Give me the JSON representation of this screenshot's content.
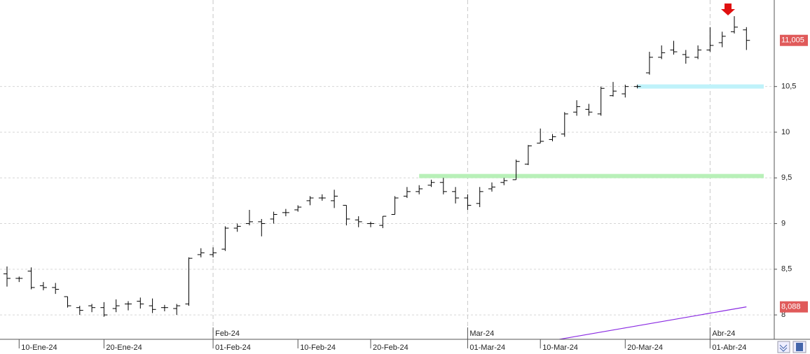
{
  "chart_data": {
    "type": "ohlc",
    "categories": [
      null,
      "10-Ene-24",
      null,
      null,
      null,
      null,
      null,
      null,
      "20-Ene-24",
      null,
      null,
      null,
      null,
      null,
      null,
      null,
      null,
      "01-Feb-24",
      null,
      null,
      null,
      null,
      null,
      null,
      "10-Feb-24",
      null,
      null,
      null,
      null,
      null,
      "20-Feb-24",
      null,
      null,
      null,
      null,
      null,
      null,
      null,
      "01-Mar-24",
      null,
      null,
      null,
      null,
      null,
      "10-Mar-24",
      null,
      null,
      null,
      null,
      null,
      null,
      "20-Mar-24",
      null,
      null,
      null,
      null,
      null,
      null,
      "01-Abr-24",
      null,
      null,
      null
    ],
    "month_labels": [
      null,
      null,
      null,
      null,
      null,
      null,
      null,
      null,
      null,
      null,
      null,
      null,
      null,
      null,
      null,
      null,
      null,
      "Feb-24",
      null,
      null,
      null,
      null,
      null,
      null,
      null,
      null,
      null,
      null,
      null,
      null,
      null,
      null,
      null,
      null,
      null,
      null,
      null,
      null,
      "Mar-24",
      null,
      null,
      null,
      null,
      null,
      null,
      null,
      null,
      null,
      null,
      null,
      null,
      null,
      null,
      null,
      null,
      null,
      null,
      null,
      "Abr-24",
      null,
      null,
      null
    ],
    "open": [
      8.45,
      8.4,
      8.48,
      8.32,
      8.3,
      8.2,
      8.08,
      8.1,
      8.08,
      8.07,
      8.12,
      8.15,
      8.1,
      8.08,
      8.07,
      8.12,
      8.66,
      8.66,
      8.72,
      8.95,
      9.0,
      9.02,
      9.05,
      9.12,
      9.15,
      9.25,
      9.28,
      9.25,
      9.2,
      9.04,
      9.0,
      8.98,
      9.1,
      9.3,
      9.35,
      9.42,
      9.45,
      9.35,
      9.28,
      9.22,
      9.38,
      9.45,
      9.48,
      9.65,
      9.88,
      9.92,
      9.98,
      10.22,
      10.25,
      10.2,
      10.4,
      10.42,
      10.5,
      10.65,
      10.82,
      10.9,
      10.85,
      10.82,
      10.9,
      10.98,
      11.1,
      11.12
    ],
    "high": [
      8.53,
      8.42,
      8.52,
      8.36,
      8.35,
      8.2,
      8.1,
      8.12,
      8.14,
      8.17,
      8.15,
      8.19,
      8.18,
      8.11,
      8.12,
      8.63,
      8.73,
      8.74,
      8.97,
      9.0,
      9.15,
      9.05,
      9.13,
      9.16,
      9.2,
      9.3,
      9.32,
      9.37,
      9.2,
      9.08,
      9.02,
      9.08,
      9.3,
      9.4,
      9.42,
      9.48,
      9.5,
      9.4,
      9.32,
      9.4,
      9.45,
      9.5,
      9.7,
      9.86,
      10.04,
      9.98,
      10.22,
      10.35,
      10.31,
      10.5,
      10.55,
      10.52,
      10.52,
      10.88,
      10.95,
      11.0,
      10.9,
      10.95,
      11.15,
      11.1,
      11.27,
      11.15
    ],
    "low": [
      8.31,
      8.36,
      8.28,
      8.27,
      8.23,
      8.08,
      8.0,
      8.03,
      7.98,
      8.03,
      8.05,
      8.07,
      8.02,
      8.04,
      8.0,
      8.1,
      8.63,
      8.63,
      8.7,
      8.91,
      8.98,
      8.86,
      9.0,
      9.08,
      9.13,
      9.2,
      9.25,
      9.17,
      8.98,
      8.96,
      8.96,
      8.95,
      9.1,
      9.28,
      9.32,
      9.4,
      9.32,
      9.22,
      9.15,
      9.18,
      9.35,
      9.42,
      9.48,
      9.64,
      9.88,
      9.9,
      9.95,
      10.18,
      10.18,
      10.18,
      10.39,
      10.38,
      10.48,
      10.63,
      10.8,
      10.85,
      10.75,
      10.8,
      10.88,
      10.93,
      11.08,
      10.9
    ],
    "close": [
      8.4,
      8.4,
      8.3,
      8.3,
      8.28,
      8.1,
      8.05,
      8.08,
      8.0,
      8.1,
      8.12,
      8.12,
      8.06,
      8.08,
      8.1,
      8.62,
      8.68,
      8.68,
      8.95,
      8.97,
      9.02,
      9.0,
      9.1,
      9.12,
      9.18,
      9.28,
      9.28,
      9.3,
      9.05,
      9.02,
      9.0,
      9.08,
      9.28,
      9.35,
      9.38,
      9.45,
      9.35,
      9.28,
      9.2,
      9.35,
      9.4,
      9.47,
      9.68,
      9.85,
      9.9,
      9.95,
      10.2,
      10.28,
      10.22,
      10.48,
      10.45,
      10.5,
      10.5,
      10.82,
      10.87,
      10.88,
      10.82,
      10.9,
      10.95,
      11.05,
      11.15,
      11.005
    ],
    "color": "#000000",
    "ylim": [
      7.733,
      11.447
    ],
    "yticks": [
      8,
      {
        "value": 8.5,
        "label": "8,5"
      },
      9,
      {
        "value": 9.5,
        "label": "9,5"
      },
      10,
      {
        "value": 10.5,
        "label": "10,5"
      }
    ],
    "grid": true,
    "levels": [
      {
        "value": 9.52,
        "color": "#b8f0b8",
        "from": 34
      },
      {
        "value": 10.5,
        "color": "#bff2fa",
        "from": 52
      }
    ],
    "indicator": {
      "color": "#8a2be2",
      "values": [
        null,
        null,
        null,
        null,
        null,
        null,
        null,
        null,
        null,
        null,
        null,
        null,
        null,
        null,
        null,
        null,
        null,
        null,
        null,
        null,
        null,
        null,
        null,
        null,
        null,
        null,
        null,
        null,
        null,
        null,
        null,
        null,
        null,
        null,
        null,
        null,
        null,
        null,
        null,
        null,
        null,
        null,
        null,
        null,
        null,
        7.72,
        7.743,
        7.766,
        7.789,
        7.812,
        7.835,
        7.858,
        7.881,
        7.904,
        7.927,
        7.95,
        7.973,
        7.996,
        8.019,
        8.042,
        8.065,
        8.088
      ]
    },
    "price_label": {
      "value": 11.005,
      "label": "11,005",
      "color": "#e05a5a"
    },
    "indicator_label": {
      "value": 8.088,
      "label": "8,088",
      "color": "#e05a5a"
    }
  }
}
